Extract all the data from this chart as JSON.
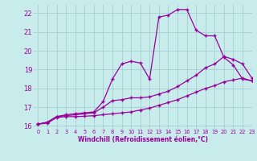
{
  "xlabel": "Windchill (Refroidissement éolien,°C)",
  "xlim": [
    -0.5,
    23
  ],
  "ylim": [
    15.85,
    22.45
  ],
  "yticks": [
    16,
    17,
    18,
    19,
    20,
    21,
    22
  ],
  "xticks": [
    0,
    1,
    2,
    3,
    4,
    5,
    6,
    7,
    8,
    9,
    10,
    11,
    12,
    13,
    14,
    15,
    16,
    17,
    18,
    19,
    20,
    21,
    22,
    23
  ],
  "bg_color": "#c8ecec",
  "grid_color": "#aad4d4",
  "line_color": "#990099",
  "line1_x": [
    0,
    1,
    2,
    3,
    4,
    5,
    6,
    7,
    8,
    9,
    10,
    11,
    12,
    13,
    14,
    15,
    16,
    17,
    18,
    19,
    20,
    21,
    22,
    23
  ],
  "line1_y": [
    16.1,
    16.2,
    16.5,
    16.6,
    16.65,
    16.7,
    16.75,
    17.3,
    18.5,
    19.3,
    19.45,
    19.35,
    18.5,
    21.8,
    21.9,
    22.2,
    22.2,
    21.1,
    20.8,
    20.8,
    19.65,
    19.25,
    18.5,
    18.4
  ],
  "line2_x": [
    0,
    1,
    2,
    3,
    4,
    5,
    6,
    7,
    8,
    9,
    10,
    11,
    12,
    13,
    14,
    15,
    16,
    17,
    18,
    19,
    20,
    21,
    22,
    23
  ],
  "line2_y": [
    16.1,
    16.2,
    16.5,
    16.55,
    16.6,
    16.65,
    16.7,
    17.0,
    17.35,
    17.4,
    17.5,
    17.5,
    17.55,
    17.7,
    17.85,
    18.1,
    18.4,
    18.7,
    19.1,
    19.3,
    19.7,
    19.55,
    19.3,
    18.55
  ],
  "line3_x": [
    0,
    1,
    2,
    3,
    4,
    5,
    6,
    7,
    8,
    9,
    10,
    11,
    12,
    13,
    14,
    15,
    16,
    17,
    18,
    19,
    20,
    21,
    22,
    23
  ],
  "line3_y": [
    16.1,
    16.15,
    16.45,
    16.5,
    16.5,
    16.52,
    16.55,
    16.6,
    16.65,
    16.7,
    16.75,
    16.85,
    16.95,
    17.1,
    17.25,
    17.4,
    17.6,
    17.8,
    18.0,
    18.15,
    18.35,
    18.45,
    18.55,
    18.4
  ]
}
